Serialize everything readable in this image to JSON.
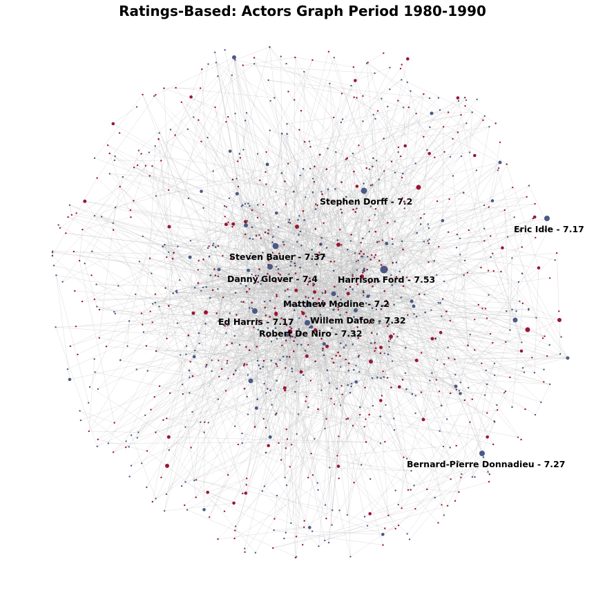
{
  "title": "Ratings-Based: Actors Graph Period 1980-1990",
  "colors": {
    "edge": "#b8b8b8",
    "node_blue": "#4a5a85",
    "node_red": "#9b1535",
    "label": "#000000",
    "background": "#ffffff"
  },
  "graph": {
    "layout": "force-directed",
    "labeled_nodes": [
      {
        "name": "Stephen Dorff - 7.2"
      },
      {
        "name": "Eric Idle - 7.17"
      },
      {
        "name": "Steven Bauer - 7.37"
      },
      {
        "name": "Danny Glover - 7.4"
      },
      {
        "name": "Harrison Ford - 7.53"
      },
      {
        "name": "Matthew Modine - 7.2"
      },
      {
        "name": "Ed Harris - 7.17"
      },
      {
        "name": "Willem Dafoe - 7.32"
      },
      {
        "name": "Robert De Niro - 7.32"
      },
      {
        "name": "Bernard-Pierre Donnadieu - 7.27"
      }
    ]
  }
}
